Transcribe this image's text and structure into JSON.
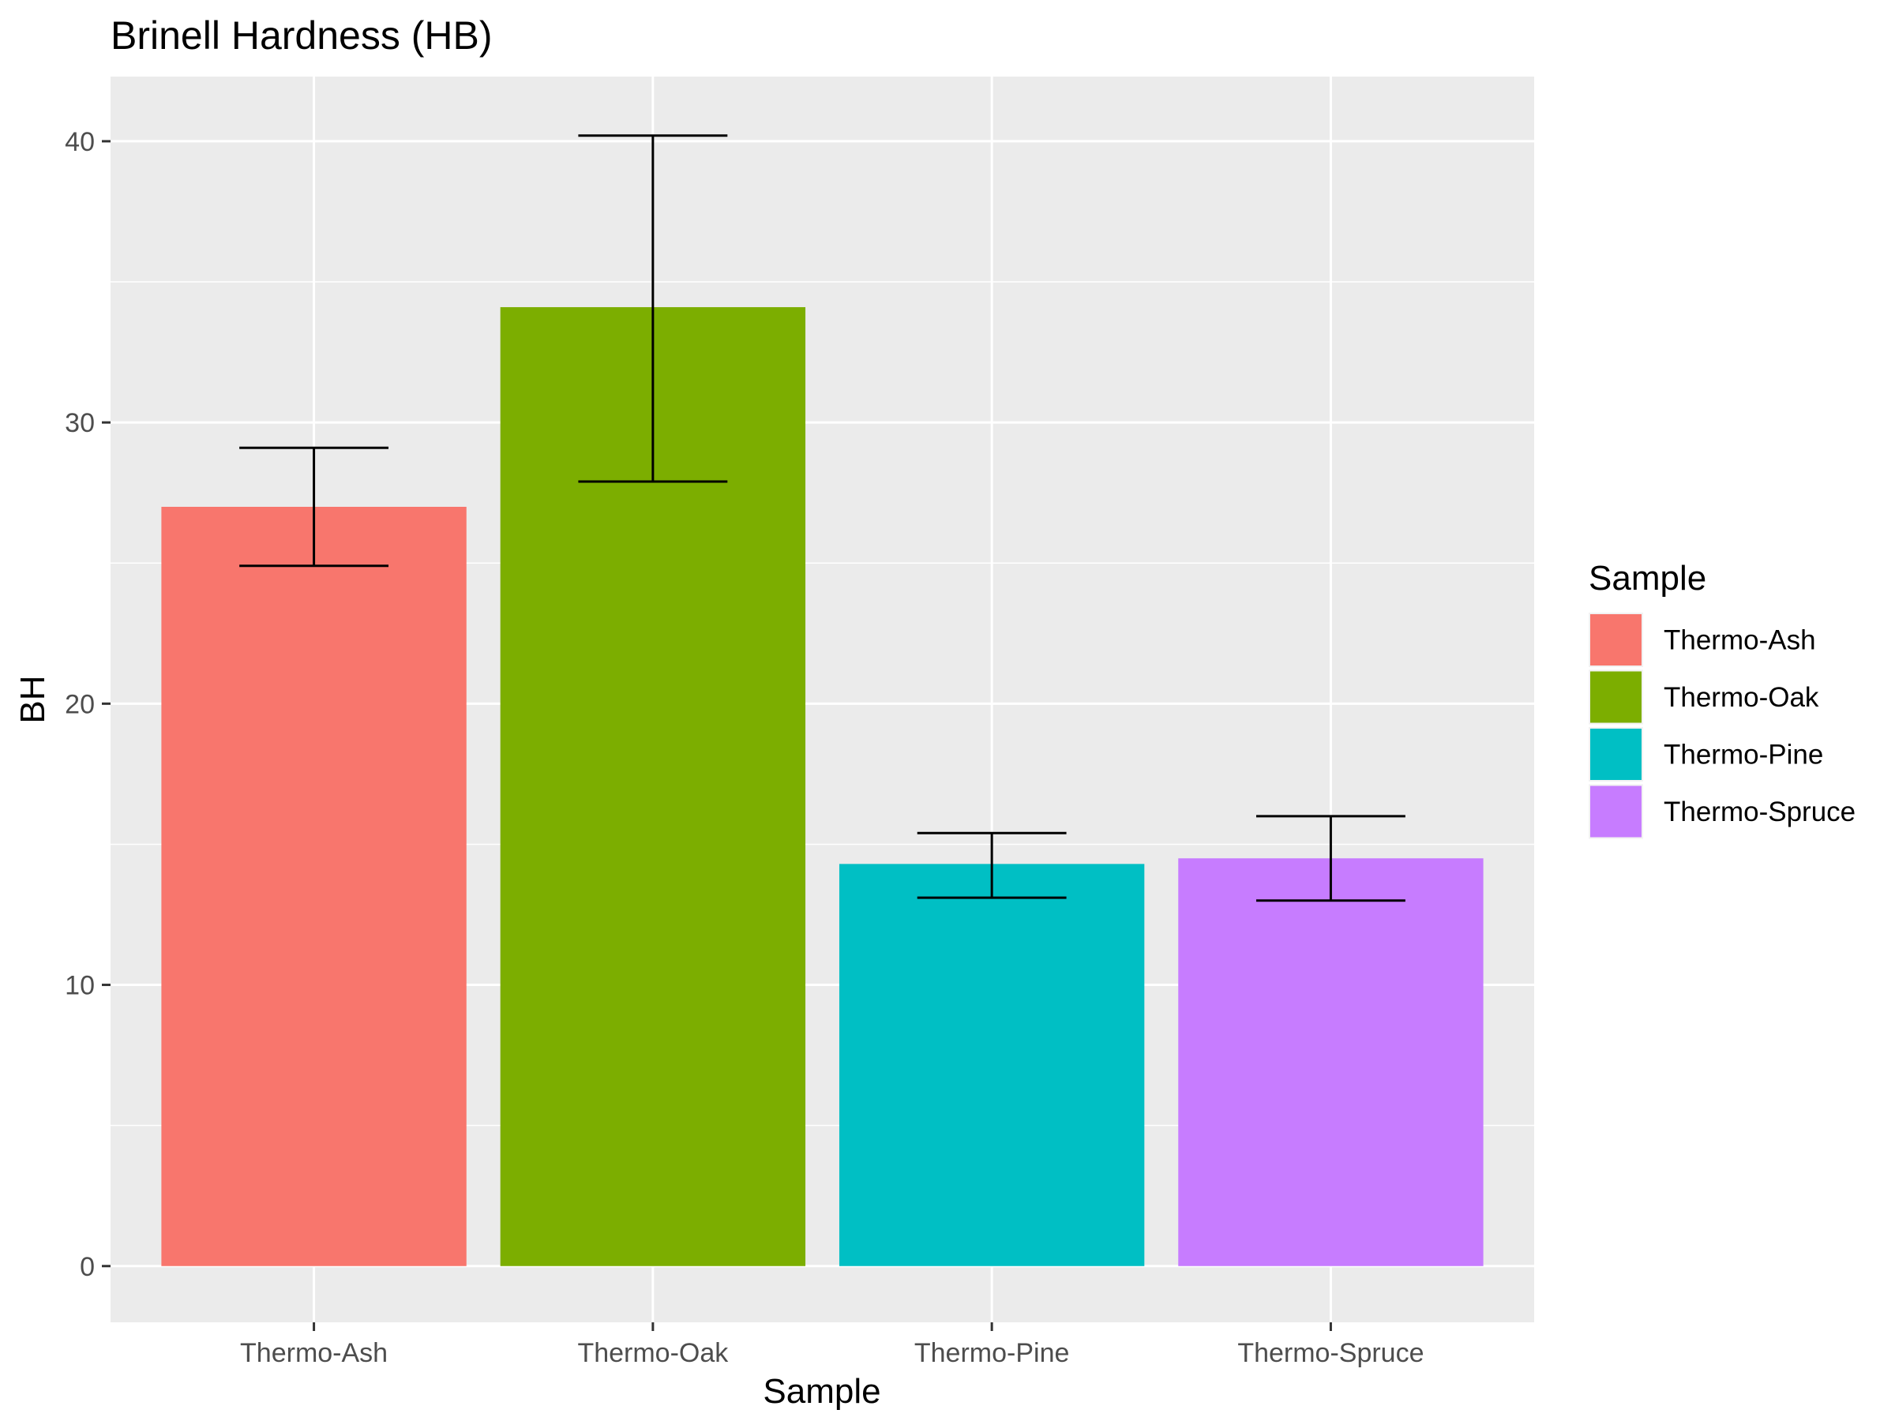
{
  "chart_data": {
    "type": "bar",
    "title": "Brinell Hardness (HB)",
    "xlabel": "Sample",
    "ylabel": "BH",
    "categories": [
      "Thermo-Ash",
      "Thermo-Oak",
      "Thermo-Pine",
      "Thermo-Spruce"
    ],
    "values": [
      27.0,
      34.1,
      14.3,
      14.5
    ],
    "error_bars": [
      {
        "low": 24.9,
        "high": 29.1
      },
      {
        "low": 27.9,
        "high": 40.2
      },
      {
        "low": 13.1,
        "high": 15.4
      },
      {
        "low": 13.0,
        "high": 16.0
      }
    ],
    "colors": [
      "#F8766D",
      "#7CAE00",
      "#00BFC4",
      "#C77CFF"
    ],
    "ylim": [
      -2,
      42.3
    ],
    "yticks": [
      0,
      10,
      20,
      30,
      40
    ],
    "grid": true,
    "legend": {
      "title": "Sample",
      "position": "right",
      "items": [
        "Thermo-Ash",
        "Thermo-Oak",
        "Thermo-Pine",
        "Thermo-Spruce"
      ]
    }
  }
}
